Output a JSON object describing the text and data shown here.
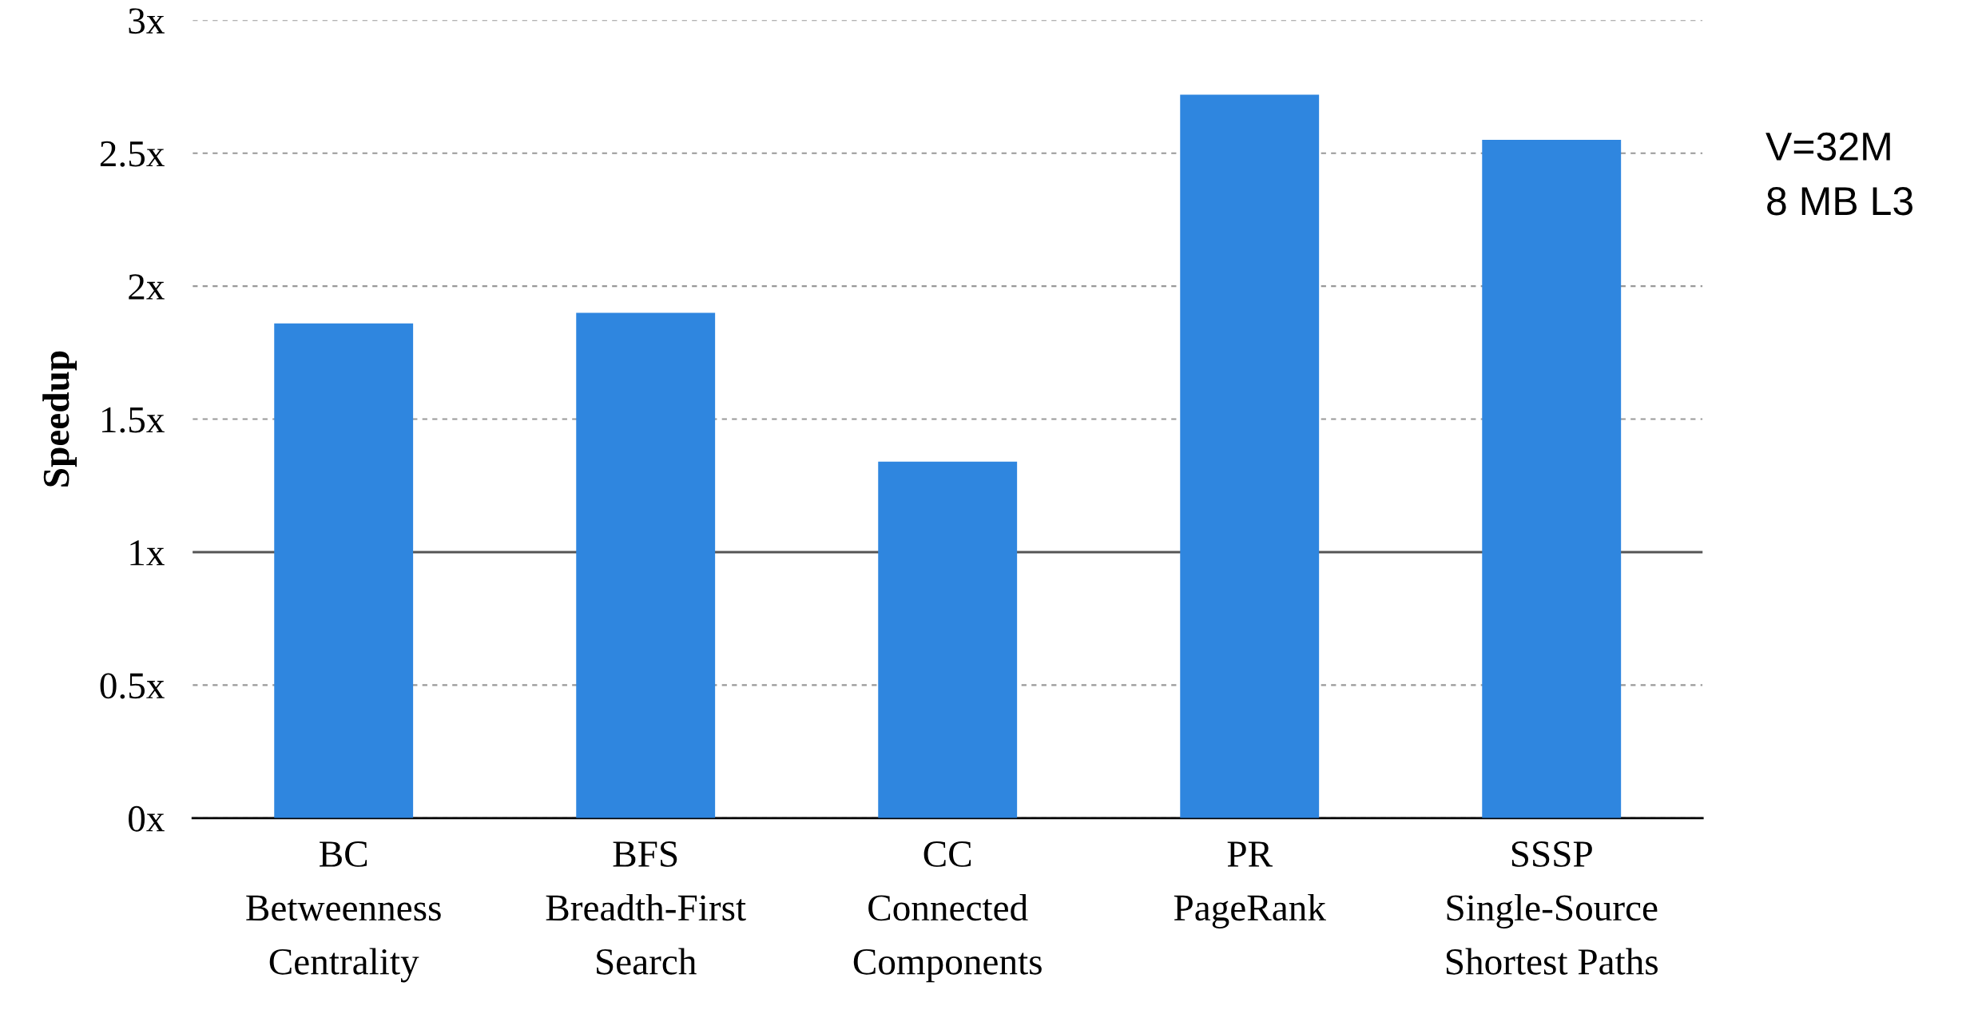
{
  "chart_data": {
    "type": "bar",
    "ylabel": "Speedup",
    "categories": [
      "BC\nBetweenness\nCentrality",
      "BFS\nBreadth-First\nSearch",
      "CC\nConnected\nComponents",
      "PR\nPageRank",
      "SSSP\nSingle-Source\nShortest Paths"
    ],
    "values": [
      1.86,
      1.9,
      1.34,
      2.72,
      2.55
    ],
    "color": "#2f86df",
    "ylim": [
      0,
      3
    ],
    "yticks": [
      {
        "value": 0,
        "label": "0x"
      },
      {
        "value": 0.5,
        "label": "0.5x"
      },
      {
        "value": 1,
        "label": "1x"
      },
      {
        "value": 1.5,
        "label": "1.5x"
      },
      {
        "value": 2,
        "label": "2x"
      },
      {
        "value": 2.5,
        "label": "2.5x"
      },
      {
        "value": 3,
        "label": "3x"
      }
    ],
    "grid": "y",
    "ref_lines": [
      {
        "axis": "y",
        "value": 1,
        "color": "#555555",
        "line_style": "solid"
      }
    ],
    "annotations": [
      "V=32M\n8 MB L3"
    ]
  }
}
